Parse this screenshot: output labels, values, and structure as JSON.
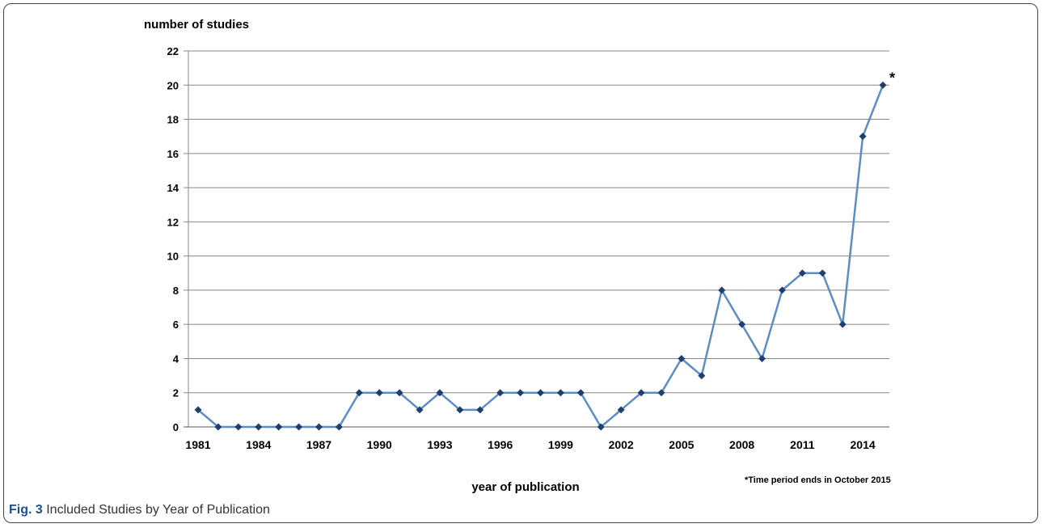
{
  "chart_data": {
    "type": "line",
    "ylabel": "number of studies",
    "xlabel": "year of publication",
    "ylim": [
      0,
      22
    ],
    "yticks": [
      0,
      2,
      4,
      6,
      8,
      10,
      12,
      14,
      16,
      18,
      20,
      22
    ],
    "xlim": [
      1981,
      2015
    ],
    "xticks": [
      1981,
      1984,
      1987,
      1990,
      1993,
      1996,
      1999,
      2002,
      2005,
      2008,
      2011,
      2014
    ],
    "grid": "horizontal",
    "line_color": "#5b8ec6",
    "marker_color": "#1f3f6e",
    "x": [
      1981,
      1982,
      1983,
      1984,
      1985,
      1986,
      1987,
      1988,
      1989,
      1990,
      1991,
      1992,
      1993,
      1994,
      1995,
      1996,
      1997,
      1998,
      1999,
      2000,
      2001,
      2002,
      2003,
      2004,
      2005,
      2006,
      2007,
      2008,
      2009,
      2010,
      2011,
      2012,
      2013,
      2014,
      2015
    ],
    "values": [
      1,
      0,
      0,
      0,
      0,
      0,
      0,
      0,
      2,
      2,
      2,
      1,
      2,
      1,
      1,
      2,
      2,
      2,
      2,
      2,
      0,
      1,
      2,
      2,
      4,
      3,
      8,
      6,
      4,
      8,
      9,
      9,
      6,
      17,
      20
    ],
    "annotation": "*",
    "footnote": "*Time period ends in October 2015"
  },
  "caption": {
    "label": "Fig. 3",
    "text": " Included Studies by Year of Publication"
  }
}
